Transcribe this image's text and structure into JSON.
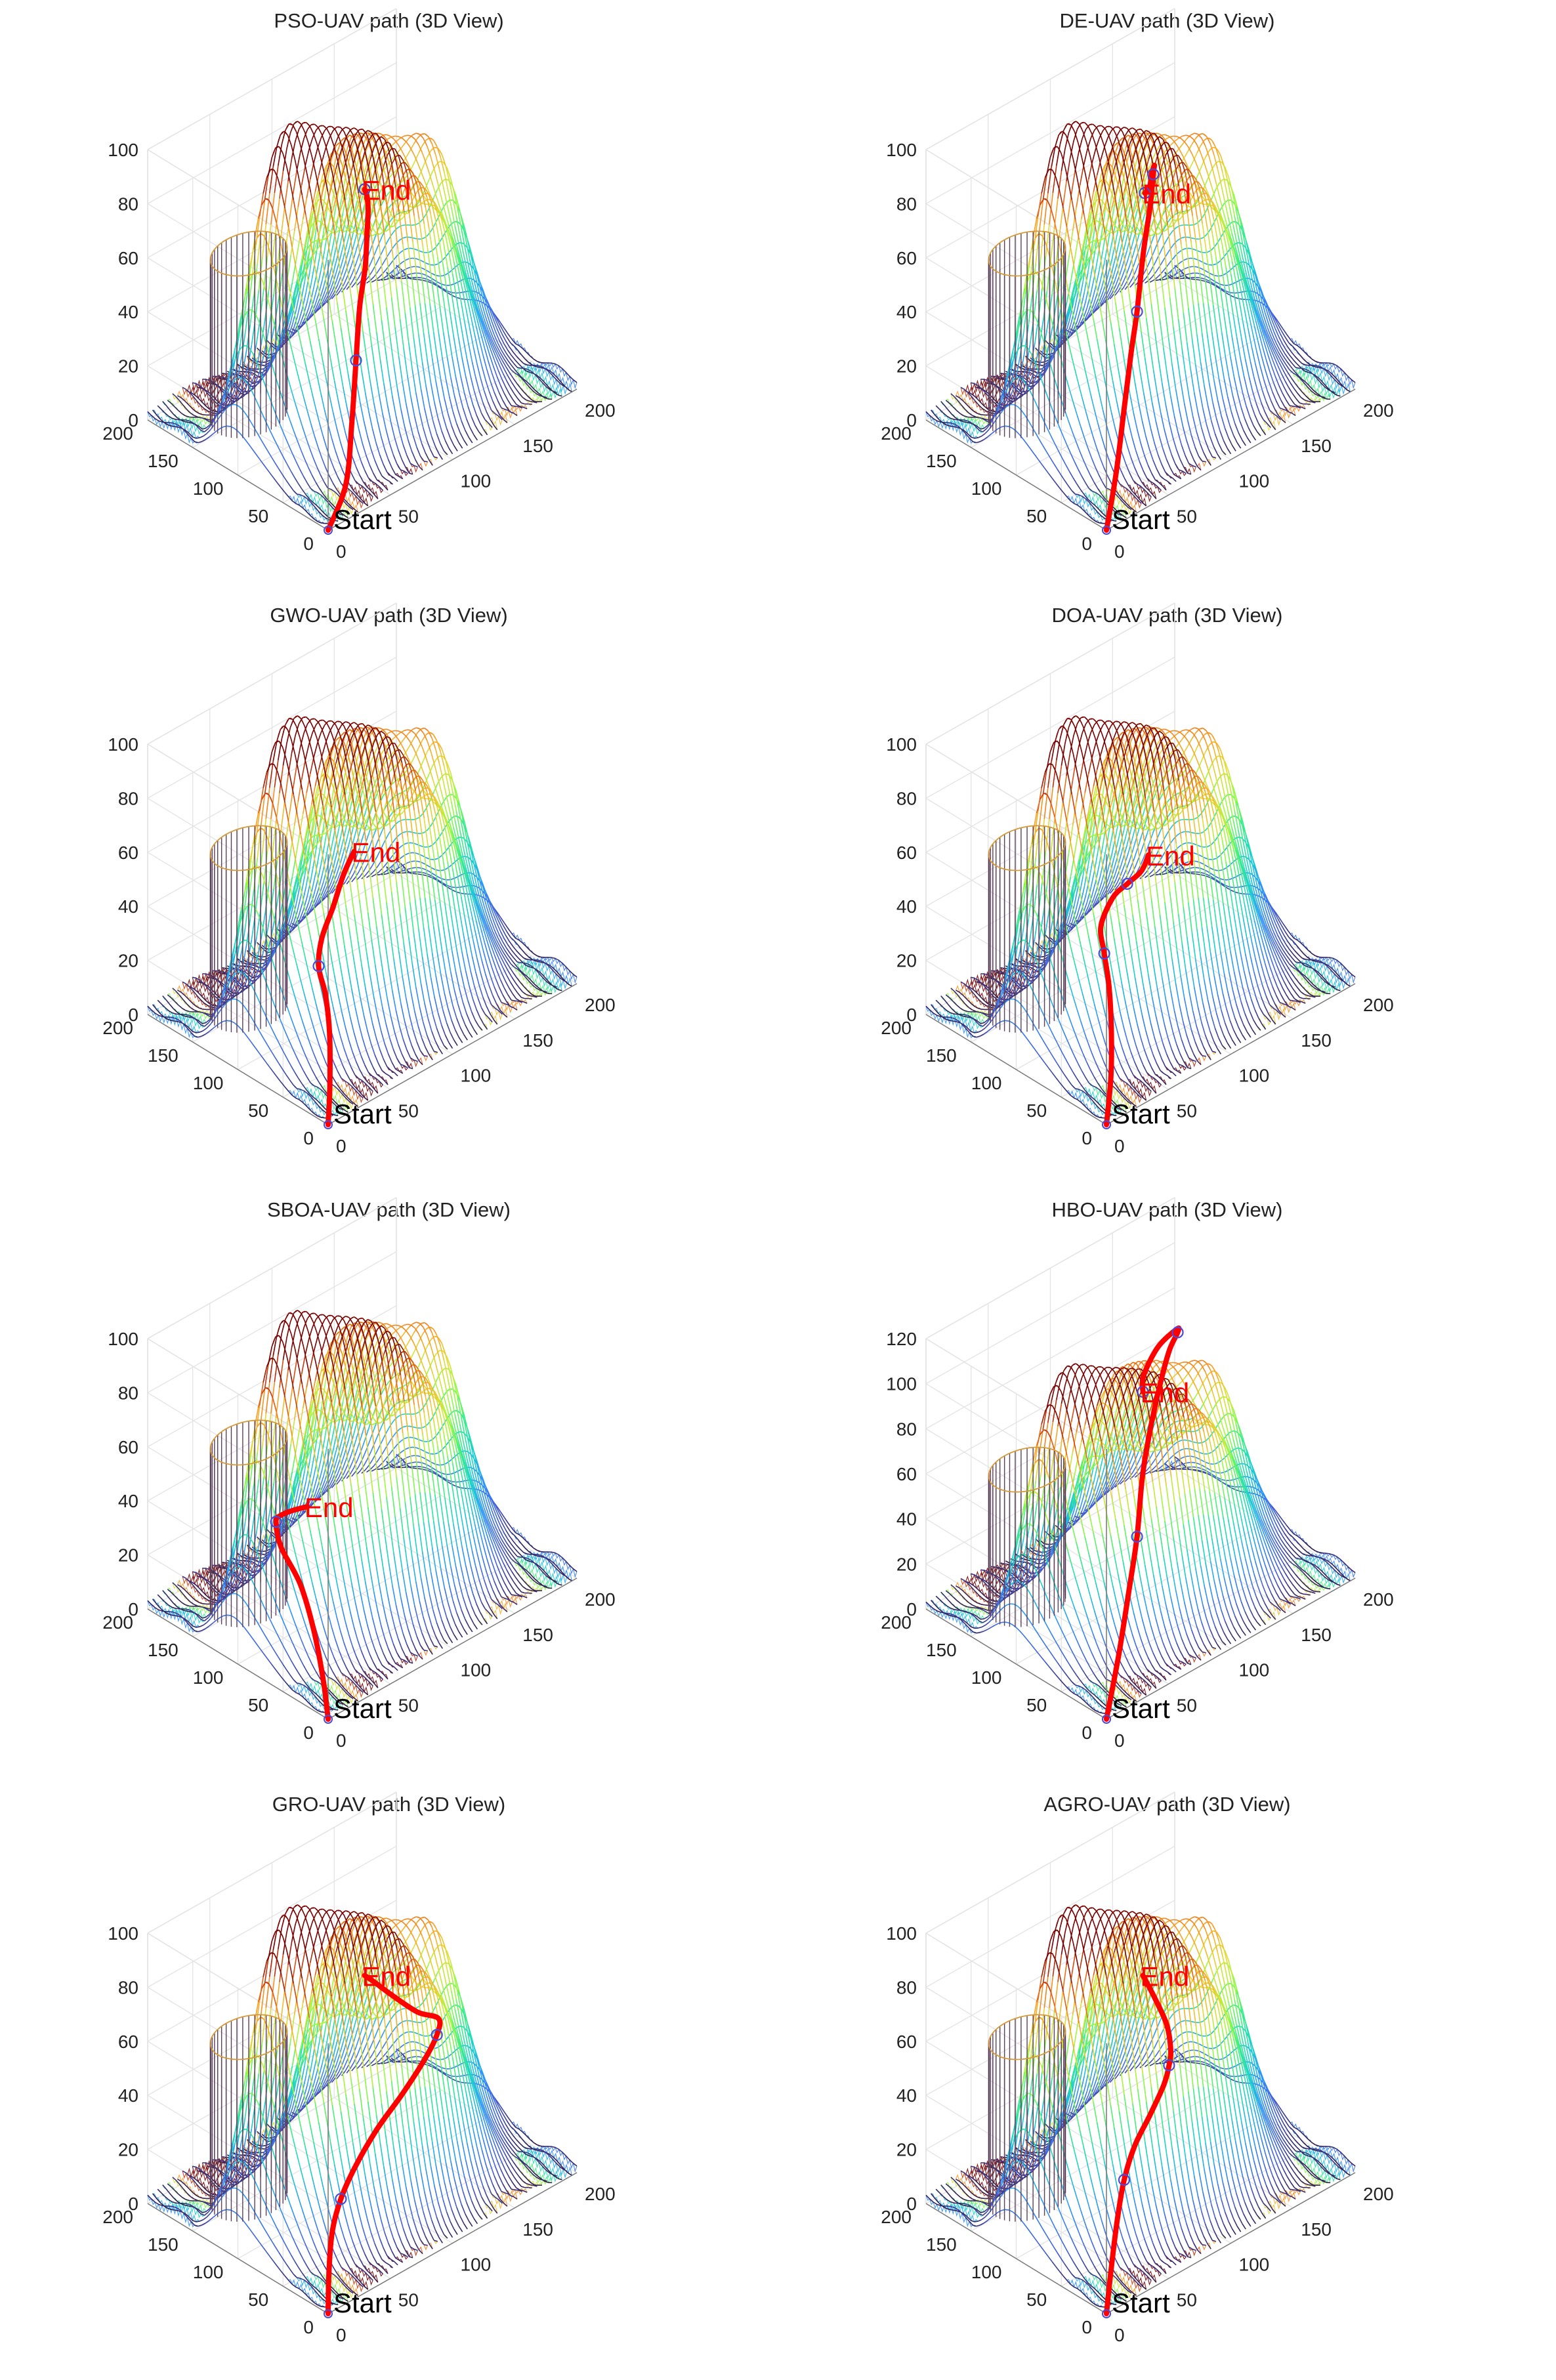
{
  "figure": {
    "colors": {
      "path": "#ff0000",
      "waypoint": "#4b4bd8",
      "grid": "#e3e3e3",
      "axis": "#7a7a7a",
      "text": "#222222",
      "colormap": "turbo"
    }
  },
  "chart_data": [
    {
      "type": "surface3d",
      "title": "PSO-UAV path (3D View)",
      "zlim": [
        0,
        100
      ],
      "zticks": [
        "0",
        "20",
        "40",
        "60",
        "80",
        "100"
      ],
      "xticks": [
        "0",
        "50",
        "100",
        "150",
        "200"
      ],
      "yticks": [
        "0",
        "50",
        "100",
        "150",
        "200"
      ],
      "start_label": "Start",
      "end_label": "End",
      "path": [
        [
          0,
          0,
          0
        ],
        [
          20,
          8,
          10
        ],
        [
          35,
          22,
          26
        ],
        [
          50,
          38,
          42
        ],
        [
          66,
          56,
          54
        ],
        [
          82,
          72,
          61
        ],
        [
          98,
          92,
          65
        ],
        [
          112,
          110,
          67
        ],
        [
          122,
          125,
          66
        ],
        [
          128,
          136,
          65
        ]
      ],
      "waypoints": [
        [
          50,
          38,
          42
        ],
        [
          128,
          136,
          65
        ]
      ]
    },
    {
      "type": "surface3d",
      "title": "DE-UAV path (3D View)",
      "zlim": [
        0,
        100
      ],
      "zticks": [
        "0",
        "20",
        "40",
        "60",
        "80",
        "100"
      ],
      "xticks": [
        "0",
        "50",
        "100",
        "150",
        "200"
      ],
      "yticks": [
        "0",
        "50",
        "100",
        "150",
        "200"
      ],
      "start_label": "Start",
      "end_label": "End",
      "path": [
        [
          0,
          0,
          0
        ],
        [
          10,
          3,
          18
        ],
        [
          20,
          8,
          38
        ],
        [
          30,
          14,
          55
        ],
        [
          42,
          24,
          65
        ],
        [
          60,
          42,
          78
        ],
        [
          80,
          62,
          86
        ],
        [
          100,
          86,
          88
        ],
        [
          114,
          104,
          84
        ],
        [
          122,
          118,
          76
        ],
        [
          126,
          126,
          68
        ],
        [
          128,
          134,
          64
        ]
      ],
      "waypoints": [
        [
          42,
          24,
          65
        ],
        [
          100,
          86,
          88
        ],
        [
          128,
          134,
          64
        ]
      ]
    },
    {
      "type": "surface3d",
      "title": "GWO-UAV path (3D View)",
      "zlim": [
        0,
        100
      ],
      "zticks": [
        "0",
        "20",
        "40",
        "60",
        "80",
        "100"
      ],
      "xticks": [
        "0",
        "50",
        "100",
        "150",
        "200"
      ],
      "yticks": [
        "0",
        "50",
        "100",
        "150",
        "200"
      ],
      "start_label": "Start",
      "end_label": "End",
      "path": [
        [
          0,
          0,
          0
        ],
        [
          5,
          5,
          12
        ],
        [
          12,
          15,
          28
        ],
        [
          18,
          28,
          38
        ],
        [
          25,
          45,
          43
        ],
        [
          40,
          62,
          46
        ],
        [
          62,
          80,
          48
        ],
        [
          85,
          100,
          50
        ],
        [
          105,
          116,
          50
        ]
      ],
      "waypoints": [
        [
          25,
          45,
          43
        ]
      ]
    },
    {
      "type": "surface3d",
      "title": "DOA-UAV path (3D View)",
      "zlim": [
        0,
        100
      ],
      "zticks": [
        "0",
        "20",
        "40",
        "60",
        "80",
        "100"
      ],
      "xticks": [
        "0",
        "50",
        "100",
        "150",
        "200"
      ],
      "yticks": [
        "0",
        "50",
        "100",
        "150",
        "200"
      ],
      "start_label": "Start",
      "end_label": "End",
      "path": [
        [
          0,
          0,
          0
        ],
        [
          8,
          6,
          15
        ],
        [
          14,
          14,
          30
        ],
        [
          18,
          22,
          42
        ],
        [
          20,
          30,
          52
        ],
        [
          26,
          42,
          58
        ],
        [
          45,
          55,
          61
        ],
        [
          66,
          68,
          58
        ],
        [
          86,
          80,
          55
        ],
        [
          102,
          94,
          54
        ]
      ],
      "waypoints": [
        [
          20,
          30,
          52
        ],
        [
          66,
          68,
          58
        ]
      ]
    },
    {
      "type": "surface3d",
      "title": "SBOA-UAV path (3D View)",
      "zlim": [
        0,
        100
      ],
      "zticks": [
        "0",
        "20",
        "40",
        "60",
        "80",
        "100"
      ],
      "xticks": [
        "0",
        "50",
        "100",
        "150",
        "200"
      ],
      "yticks": [
        "0",
        "50",
        "100",
        "150",
        "200"
      ],
      "start_label": "Start",
      "end_label": "End",
      "path": [
        [
          0,
          0,
          0
        ],
        [
          2,
          8,
          12
        ],
        [
          3,
          20,
          28
        ],
        [
          3,
          35,
          42
        ],
        [
          2,
          55,
          52
        ],
        [
          6,
          66,
          58
        ],
        [
          14,
          72,
          57
        ],
        [
          28,
          78,
          54
        ],
        [
          44,
          84,
          50
        ]
      ],
      "waypoints": [
        [
          6,
          66,
          58
        ]
      ]
    },
    {
      "type": "surface3d",
      "title": "HBO-UAV path (3D View)",
      "zlim": [
        0,
        120
      ],
      "zticks": [
        "0",
        "20",
        "40",
        "60",
        "80",
        "100",
        "120"
      ],
      "xticks": [
        "0",
        "50",
        "100",
        "150",
        "200"
      ],
      "yticks": [
        "0",
        "50",
        "100",
        "150",
        "200"
      ],
      "start_label": "Start",
      "end_label": "End",
      "path": [
        [
          0,
          0,
          0
        ],
        [
          14,
          6,
          22
        ],
        [
          28,
          14,
          44
        ],
        [
          42,
          24,
          62
        ],
        [
          58,
          40,
          80
        ],
        [
          78,
          58,
          92
        ],
        [
          102,
          80,
          99
        ],
        [
          122,
          98,
          102
        ],
        [
          140,
          114,
          100
        ],
        [
          148,
          126,
          96
        ],
        [
          140,
          136,
          88
        ],
        [
          130,
          138,
          78
        ],
        [
          128,
          136,
          72
        ]
      ],
      "waypoints": [
        [
          42,
          24,
          62
        ],
        [
          140,
          114,
          100
        ],
        [
          128,
          136,
          72
        ]
      ]
    },
    {
      "type": "surface3d",
      "title": "GRO-UAV path (3D View)",
      "zlim": [
        0,
        100
      ],
      "zticks": [
        "0",
        "20",
        "40",
        "60",
        "80",
        "100"
      ],
      "xticks": [
        "0",
        "50",
        "100",
        "150",
        "200"
      ],
      "yticks": [
        "0",
        "50",
        "100",
        "150",
        "200"
      ],
      "start_label": "Start",
      "end_label": "End",
      "path": [
        [
          0,
          0,
          0
        ],
        [
          8,
          10,
          12
        ],
        [
          18,
          20,
          22
        ],
        [
          32,
          30,
          28
        ],
        [
          52,
          42,
          32
        ],
        [
          80,
          56,
          36
        ],
        [
          110,
          70,
          38
        ],
        [
          140,
          86,
          40
        ],
        [
          160,
          100,
          41
        ],
        [
          170,
          112,
          42
        ],
        [
          162,
          124,
          44
        ],
        [
          148,
          132,
          52
        ],
        [
          135,
          136,
          60
        ],
        [
          128,
          136,
          64
        ]
      ],
      "waypoints": [
        [
          32,
          30,
          28
        ],
        [
          160,
          100,
          41
        ]
      ]
    },
    {
      "type": "surface3d",
      "title": "AGRO-UAV path (3D View)",
      "zlim": [
        0,
        100
      ],
      "zticks": [
        "0",
        "20",
        "40",
        "60",
        "80",
        "100"
      ],
      "xticks": [
        "0",
        "50",
        "100",
        "150",
        "200"
      ],
      "yticks": [
        "0",
        "50",
        "100",
        "150",
        "200"
      ],
      "start_label": "Start",
      "end_label": "End",
      "path": [
        [
          0,
          0,
          0
        ],
        [
          10,
          8,
          14
        ],
        [
          22,
          18,
          26
        ],
        [
          36,
          30,
          34
        ],
        [
          56,
          46,
          38
        ],
        [
          80,
          62,
          40
        ],
        [
          104,
          80,
          41
        ],
        [
          120,
          96,
          41
        ],
        [
          130,
          108,
          42
        ],
        [
          134,
          118,
          48
        ],
        [
          132,
          128,
          56
        ],
        [
          128,
          136,
          64
        ]
      ],
      "waypoints": [
        [
          36,
          30,
          34
        ],
        [
          120,
          96,
          41
        ]
      ]
    }
  ]
}
